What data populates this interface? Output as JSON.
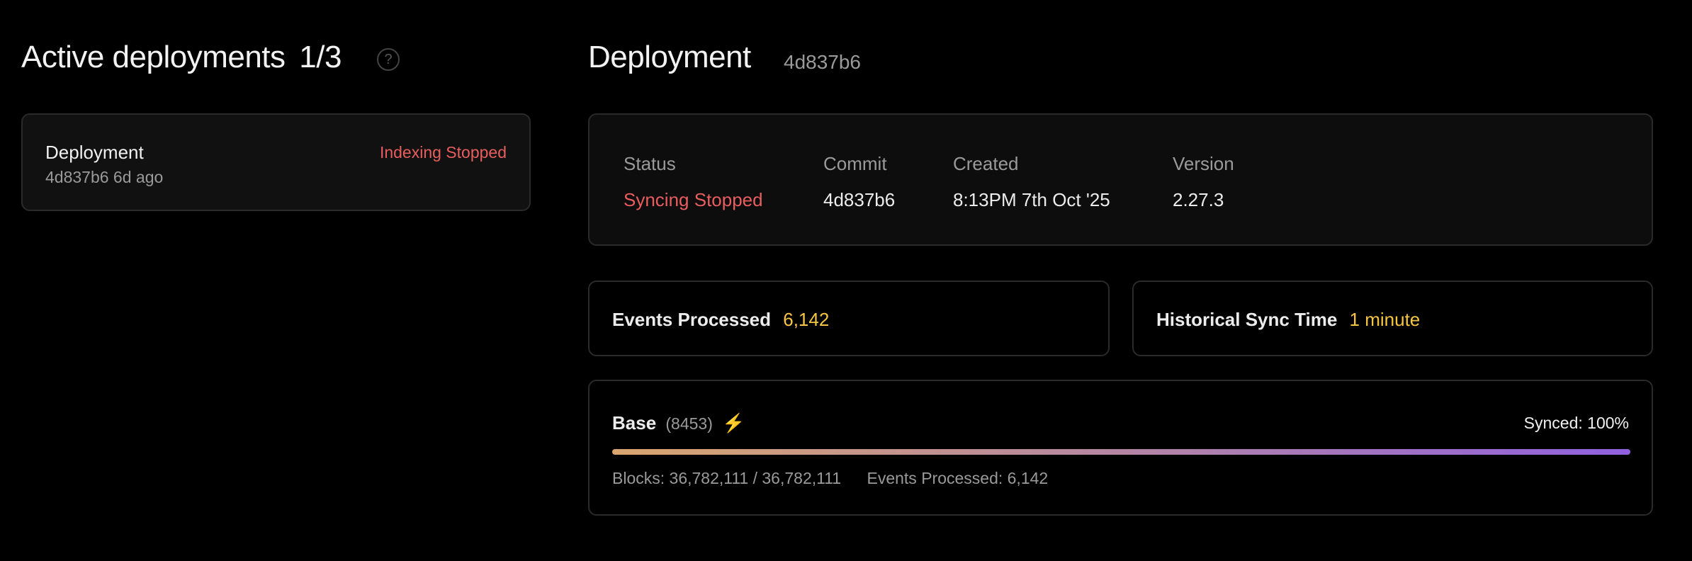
{
  "left": {
    "title": "Active deployments",
    "count": "1/3",
    "help_icon": "question-circle-icon",
    "deployments": [
      {
        "name": "Deployment",
        "meta": "4d837b6 6d ago",
        "status": "Indexing Stopped"
      }
    ]
  },
  "detail": {
    "title": "Deployment",
    "hash": "4d837b6",
    "info": [
      {
        "label": "Status",
        "value": "Syncing Stopped"
      },
      {
        "label": "Commit",
        "value": "4d837b6"
      },
      {
        "label": "Created",
        "value": "8:13PM 7th Oct '25"
      },
      {
        "label": "Version",
        "value": "2.27.3"
      }
    ],
    "stats": [
      {
        "label": "Events Processed",
        "value": "6,142"
      },
      {
        "label": "Historical Sync Time",
        "value": "1 minute"
      }
    ],
    "chain": {
      "name": "Base",
      "id": "(8453)",
      "icon": "lightning-icon",
      "synced": "Synced: 100%",
      "progress_percent": 100,
      "blocks": "Blocks: 36,782,111 / 36,782,111",
      "events": "Events Processed: 6,142"
    }
  },
  "colors": {
    "stopped": "#e85d5d",
    "highlight": "#f5c542",
    "bar_start": "#d9a56f",
    "bar_end": "#9060e0"
  }
}
